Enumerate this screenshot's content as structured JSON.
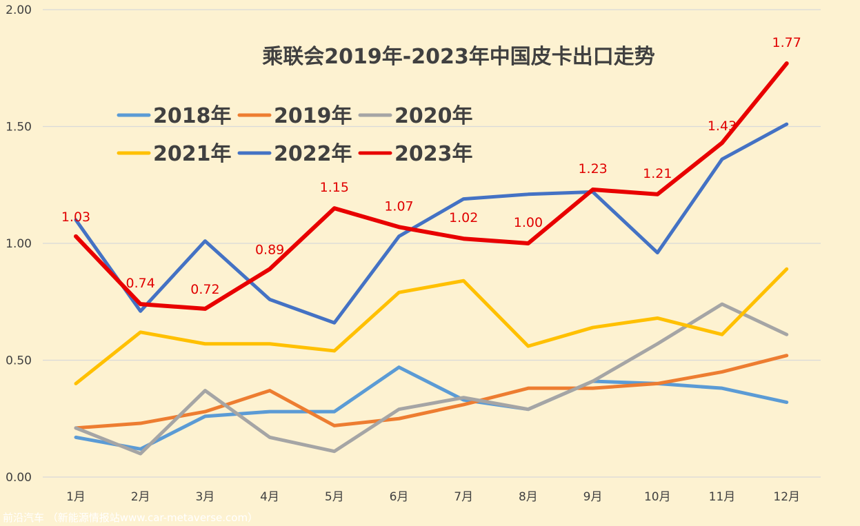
{
  "chart_data": {
    "type": "line",
    "title": "乘联会2019年-2023年中国皮卡出口走势",
    "categories": [
      "1月",
      "2月",
      "3月",
      "4月",
      "5月",
      "6月",
      "7月",
      "8月",
      "9月",
      "10月",
      "11月",
      "12月"
    ],
    "ylim": [
      0,
      2.0
    ],
    "yticks": [
      "0.00",
      "0.50",
      "1.00",
      "1.50",
      "2.00"
    ],
    "grid": true,
    "legend_position": "top-left",
    "series": [
      {
        "name": "2018年",
        "color": "#5b9bd5",
        "values": [
          0.17,
          0.12,
          0.26,
          0.28,
          0.28,
          0.47,
          0.33,
          0.29,
          0.41,
          0.4,
          0.38,
          0.32
        ]
      },
      {
        "name": "2019年",
        "color": "#ed7d31",
        "values": [
          0.21,
          0.23,
          0.28,
          0.37,
          0.22,
          0.25,
          0.31,
          0.38,
          0.38,
          0.4,
          0.45,
          0.52
        ]
      },
      {
        "name": "2020年",
        "color": "#a5a5a5",
        "values": [
          0.21,
          0.1,
          0.37,
          0.17,
          0.11,
          0.29,
          0.34,
          0.29,
          0.41,
          0.57,
          0.74,
          0.61
        ]
      },
      {
        "name": "2021年",
        "color": "#ffc000",
        "values": [
          0.4,
          0.62,
          0.57,
          0.57,
          0.54,
          0.79,
          0.84,
          0.56,
          0.64,
          0.68,
          0.61,
          0.89
        ]
      },
      {
        "name": "2022年",
        "color": "#4472c4",
        "values": [
          1.1,
          0.71,
          1.01,
          0.76,
          0.66,
          1.03,
          1.19,
          1.21,
          1.22,
          0.96,
          1.36,
          1.51
        ]
      },
      {
        "name": "2023年",
        "color": "#e80000",
        "values": [
          1.03,
          0.74,
          0.72,
          0.89,
          1.15,
          1.07,
          1.02,
          1.0,
          1.23,
          1.21,
          1.43,
          1.77
        ]
      }
    ],
    "data_labels": [
      "1.03",
      "0.74",
      "0.72",
      "0.89",
      "1.15",
      "1.07",
      "1.02",
      "1.00",
      "1.23",
      "1.21",
      "1.43",
      "1.77"
    ]
  },
  "watermark": "前沿汽车 （新能源情报站www.car-metaverse.com）"
}
